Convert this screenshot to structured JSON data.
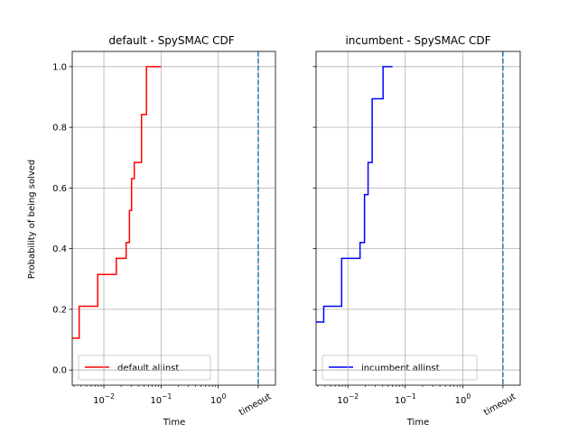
{
  "chart_data": [
    {
      "type": "line",
      "step": "post",
      "title": "default - SpySMAC CDF",
      "xlabel": "Time",
      "ylabel": "Probability of being solved",
      "xscale": "log",
      "xlim": [
        0.0028,
        10
      ],
      "ylim": [
        -0.05,
        1.05
      ],
      "grid": true,
      "legend_position": "lower-left",
      "x_tick_labels": [
        "10^-2",
        "10^-1",
        "10^0",
        "timeout"
      ],
      "y_tick_labels": [
        "0.0",
        "0.2",
        "0.4",
        "0.6",
        "0.8",
        "1.0"
      ],
      "x_ticks": [
        0.01,
        0.1,
        1,
        5
      ],
      "y_ticks": [
        0.0,
        0.2,
        0.4,
        0.6,
        0.8,
        1.0
      ],
      "timeout": 5,
      "series": [
        {
          "name": "default allinst",
          "color": "#ff0000",
          "x": [
            0.0028,
            0.0037,
            0.0078,
            0.0165,
            0.0245,
            0.028,
            0.0305,
            0.034,
            0.0455,
            0.0555,
            0.1
          ],
          "y": [
            0.105,
            0.21,
            0.315,
            0.368,
            0.42,
            0.526,
            0.631,
            0.684,
            0.842,
            1.0,
            1.0
          ]
        }
      ],
      "timeout_line_color": "#1f77b4"
    },
    {
      "type": "line",
      "step": "post",
      "title": "incumbent - SpySMAC CDF",
      "xlabel": "Time",
      "xscale": "log",
      "xlim": [
        0.0028,
        10
      ],
      "ylim": [
        -0.05,
        1.05
      ],
      "grid": true,
      "legend_position": "lower-left",
      "x_tick_labels": [
        "10^-2",
        "10^-1",
        "10^0",
        "timeout"
      ],
      "x_ticks": [
        0.01,
        0.1,
        1,
        5
      ],
      "y_ticks": [
        0.0,
        0.2,
        0.4,
        0.6,
        0.8,
        1.0
      ],
      "timeout": 5,
      "series": [
        {
          "name": "incumbent allinst",
          "color": "#0000ff",
          "x": [
            0.0028,
            0.0038,
            0.0078,
            0.0163,
            0.0195,
            0.0225,
            0.0265,
            0.032,
            0.041,
            0.06
          ],
          "y": [
            0.158,
            0.21,
            0.368,
            0.42,
            0.578,
            0.684,
            0.894,
            0.894,
            1.0,
            1.0
          ]
        }
      ],
      "timeout_line_color": "#1f77b4"
    }
  ]
}
